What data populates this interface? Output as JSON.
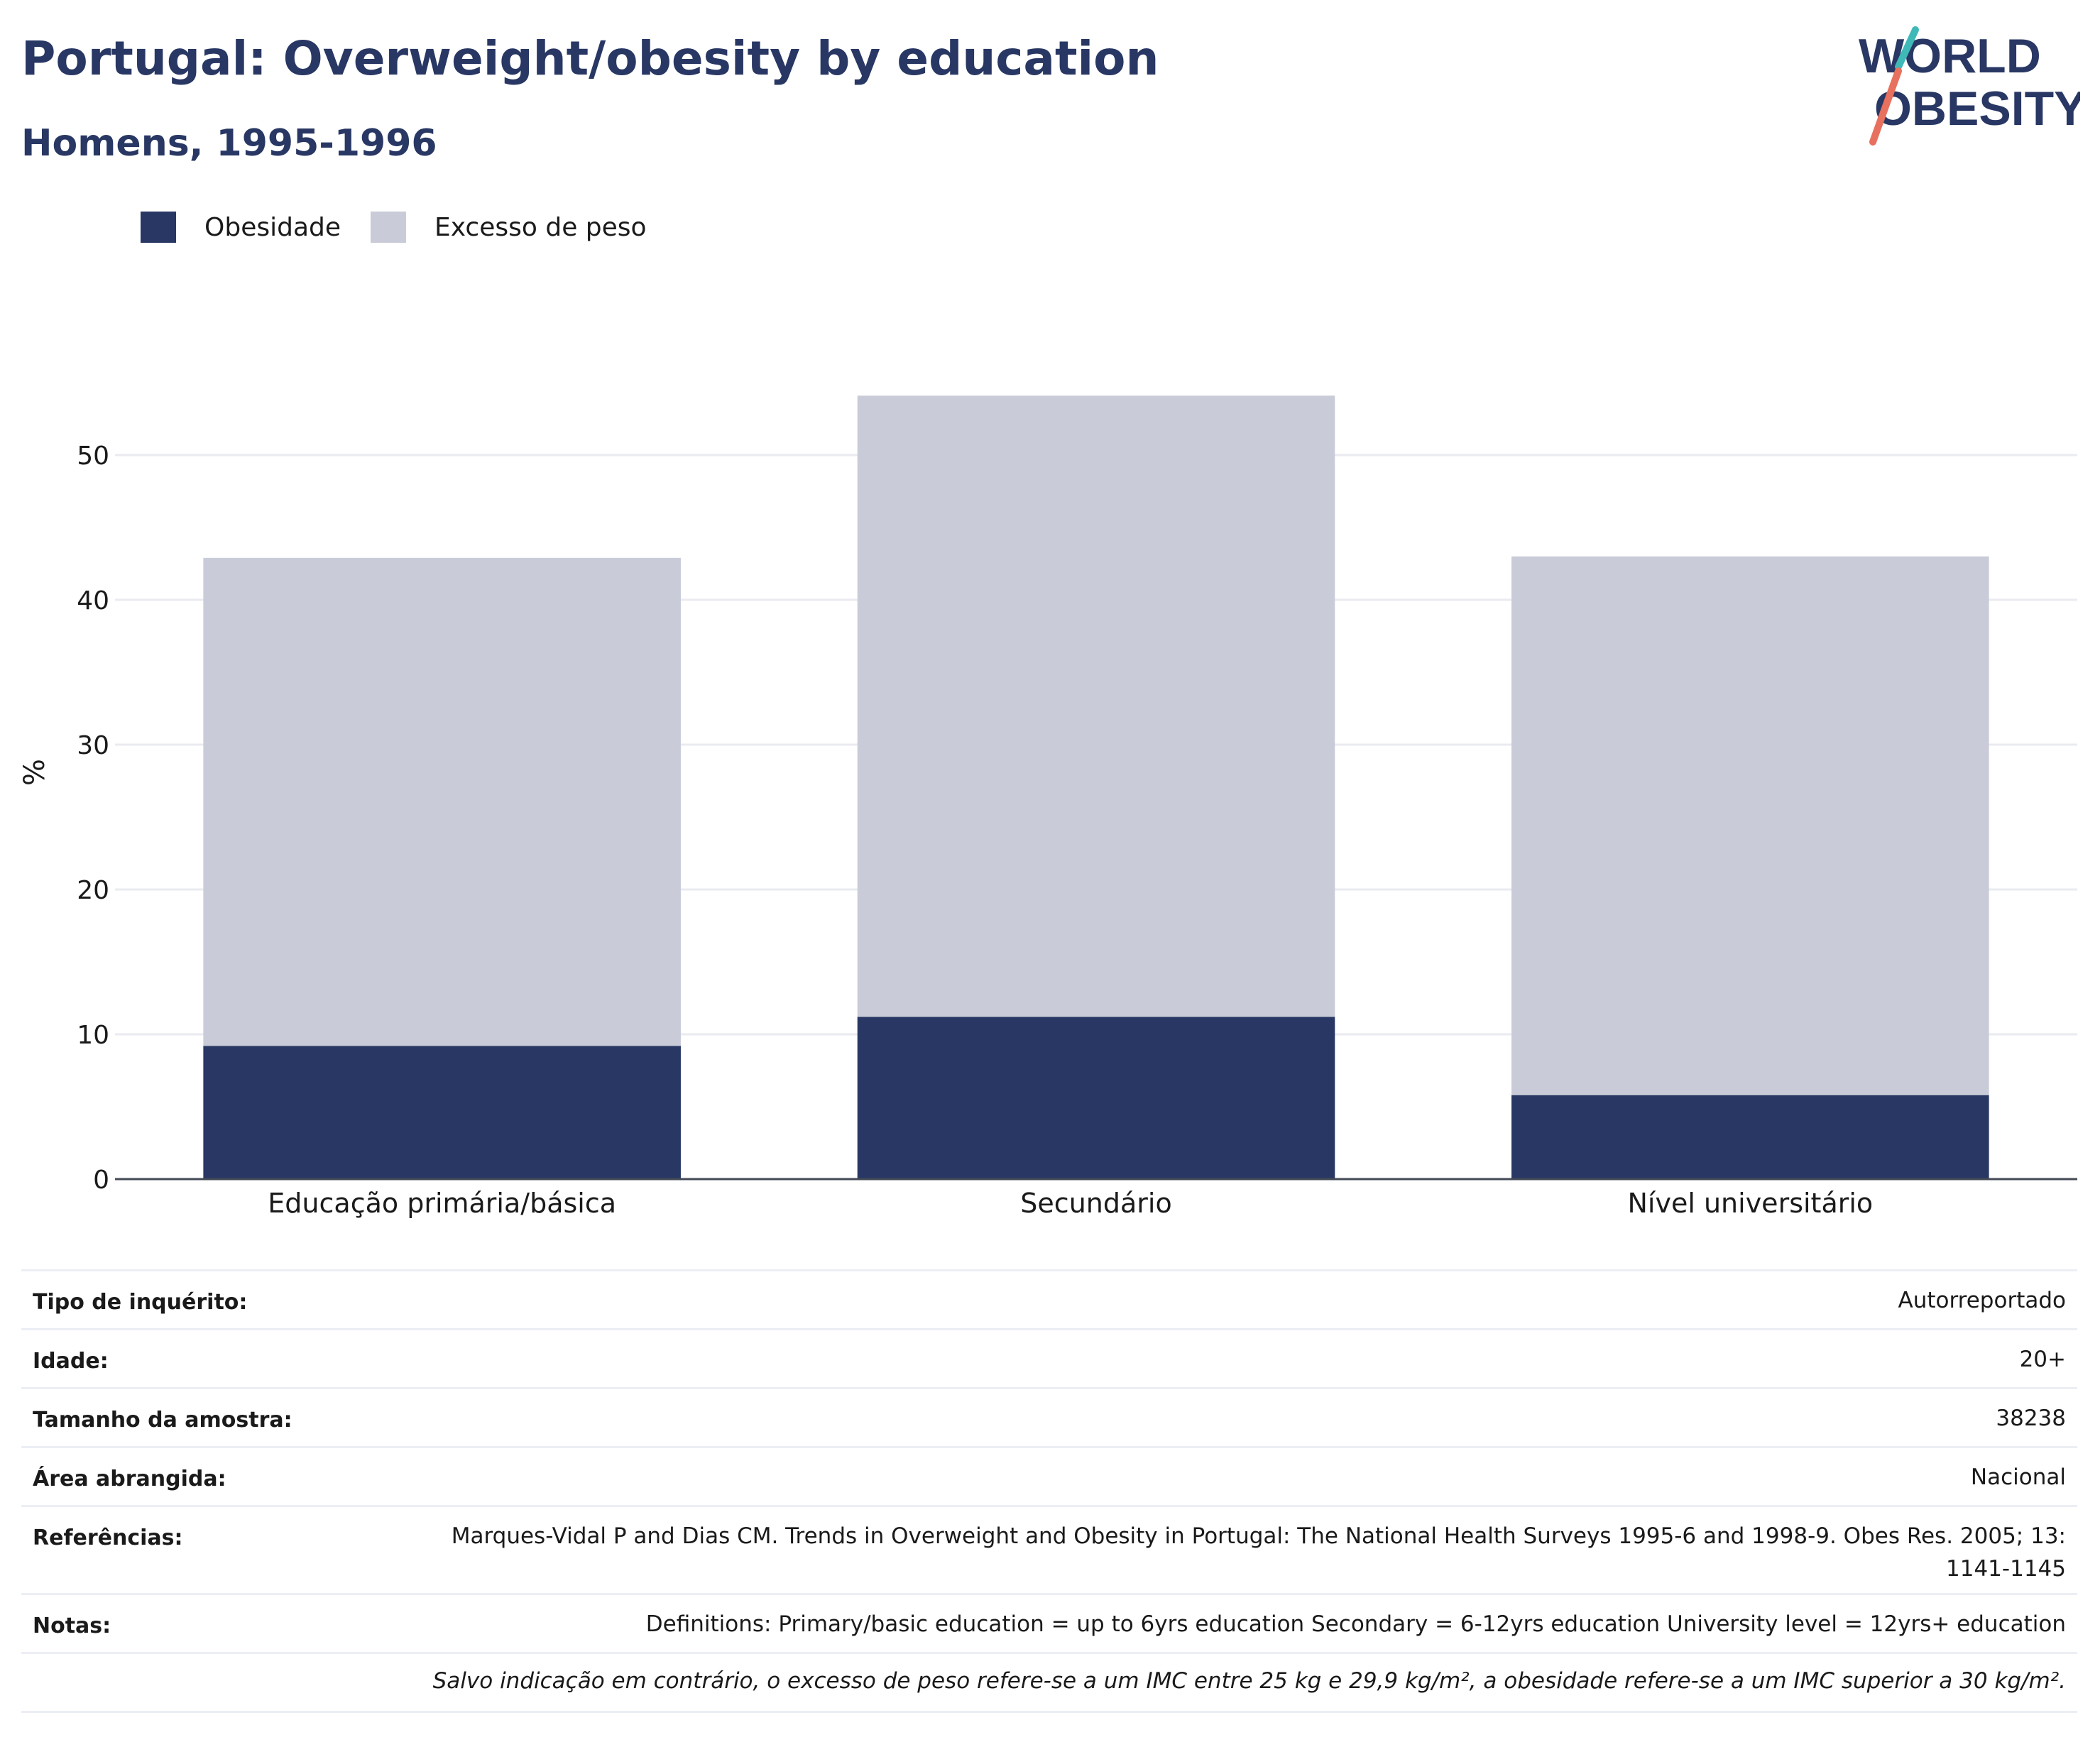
{
  "header": {
    "title": "Portugal: Overweight/obesity by education",
    "subtitle": "Homens, 1995-1996"
  },
  "logo": {
    "line1": "WORLD",
    "line2": "OBESITY",
    "icon": "world-obesity-logo"
  },
  "legend": {
    "items": [
      {
        "label": "Obesidade",
        "color": "#283763"
      },
      {
        "label": "Excesso de peso",
        "color": "#c9ccd8"
      }
    ]
  },
  "chart_data": {
    "type": "bar",
    "stacked": true,
    "categories": [
      "Educação primária/básica",
      "Secundário",
      "Nível universitário"
    ],
    "series": [
      {
        "name": "Obesidade",
        "values": [
          9.2,
          11.2,
          5.8
        ],
        "color": "#283763"
      },
      {
        "name": "Excesso de peso",
        "values": [
          33.7,
          42.9,
          37.2
        ],
        "color": "#c9ccd8"
      }
    ],
    "ylabel": "%",
    "ylim": [
      0,
      55
    ],
    "yticks": [
      0,
      10,
      20,
      30,
      40,
      50
    ],
    "grid": true,
    "legend_position": "top-left"
  },
  "meta": {
    "rows": [
      {
        "label": "Tipo de inquérito:",
        "value": "Autorreportado"
      },
      {
        "label": "Idade:",
        "value": "20+"
      },
      {
        "label": "Tamanho da amostra:",
        "value": "38238"
      },
      {
        "label": "Área abrangida:",
        "value": "Nacional"
      },
      {
        "label": "Referências:",
        "value": "Marques-Vidal P and Dias CM. Trends in Overweight and Obesity in Portugal: The National Health Surveys 1995-6 and 1998-9. Obes Res. 2005; 13: 1141-1145"
      },
      {
        "label": "Notas:",
        "value": "Definitions: Primary/basic education = up to 6yrs education Secondary = 6-12yrs education University level = 12yrs+ education"
      }
    ],
    "footnote": "Salvo indicação em contrário, o excesso de peso refere-se a um IMC entre 25 kg e 29,9 kg/m², a obesidade refere-se a um IMC superior a 30 kg/m²."
  }
}
